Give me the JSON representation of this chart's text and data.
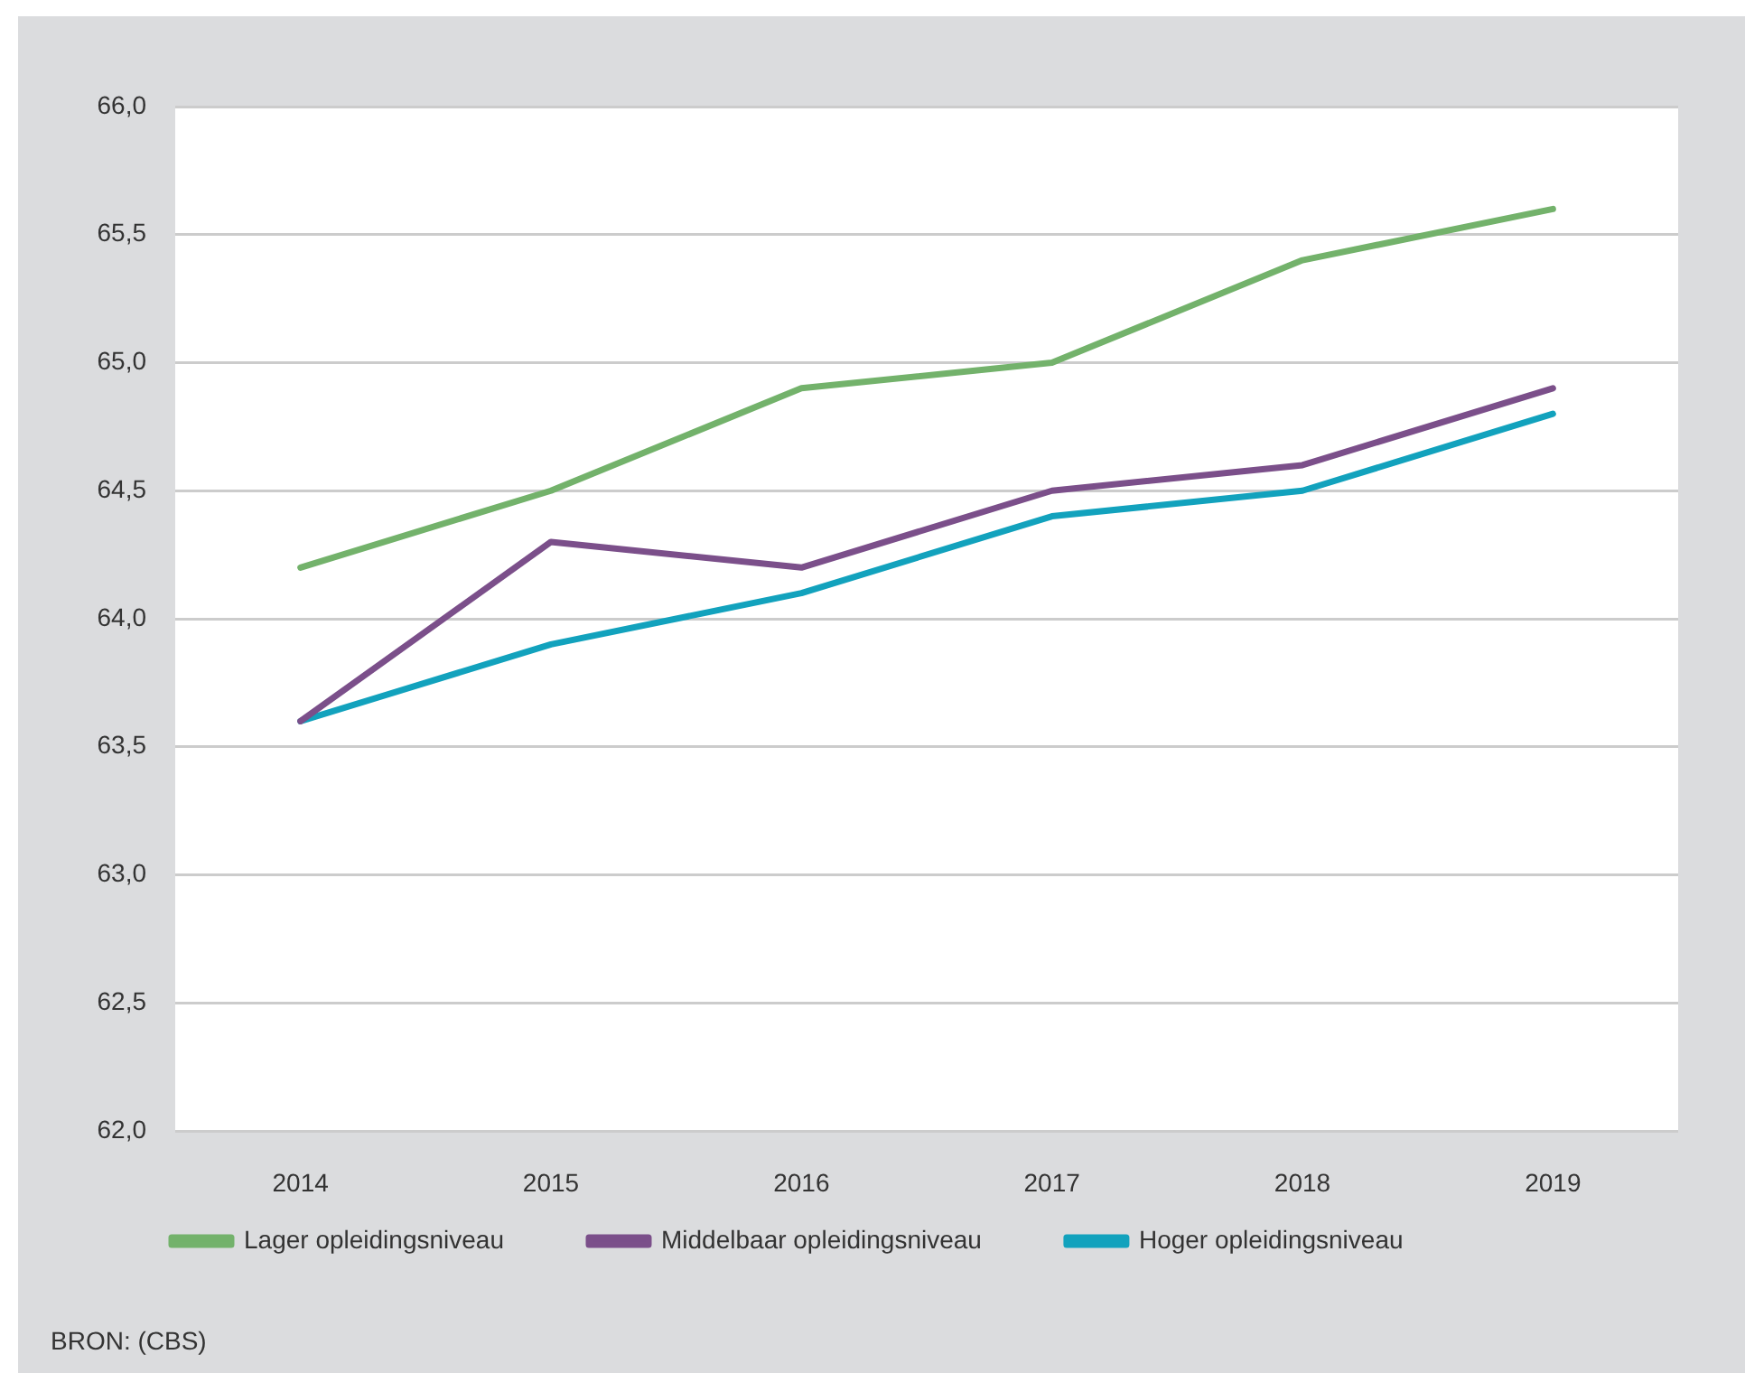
{
  "chart_data": {
    "type": "line",
    "categories": [
      "2014",
      "2015",
      "2016",
      "2017",
      "2018",
      "2019"
    ],
    "series": [
      {
        "name": "Lager opleidingsniveau",
        "color": "#73b26b",
        "values": [
          64.2,
          64.5,
          64.9,
          65.0,
          65.4,
          65.6
        ]
      },
      {
        "name": "Middelbaar opleidingsniveau",
        "color": "#7b4f8a",
        "values": [
          63.6,
          64.3,
          64.2,
          64.5,
          64.6,
          64.9
        ]
      },
      {
        "name": "Hoger opleidingsniveau",
        "color": "#12a2bd",
        "values": [
          63.6,
          63.9,
          64.1,
          64.4,
          64.5,
          64.8
        ]
      }
    ],
    "ylim": [
      62,
      66
    ],
    "yticks": [
      {
        "value": 62,
        "label": "62,0"
      },
      {
        "value": 62.5,
        "label": "62,5"
      },
      {
        "value": 63,
        "label": "63,0"
      },
      {
        "value": 63.5,
        "label": "63,5"
      },
      {
        "value": 64,
        "label": "64,0"
      },
      {
        "value": 64.5,
        "label": "64,5"
      },
      {
        "value": 65,
        "label": "65,0"
      },
      {
        "value": 65.5,
        "label": "65,5"
      },
      {
        "value": 66,
        "label": "66,0"
      }
    ],
    "grid": "y",
    "legend": "bottom",
    "annotations": [
      "BRON: (CBS)"
    ]
  }
}
